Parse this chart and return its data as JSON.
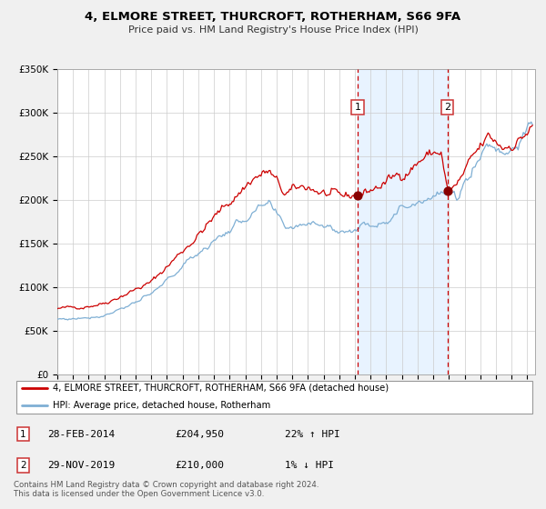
{
  "title": "4, ELMORE STREET, THURCROFT, ROTHERHAM, S66 9FA",
  "subtitle": "Price paid vs. HM Land Registry's House Price Index (HPI)",
  "legend_property": "4, ELMORE STREET, THURCROFT, ROTHERHAM, S66 9FA (detached house)",
  "legend_hpi": "HPI: Average price, detached house, Rotherham",
  "sale1_date": "28-FEB-2014",
  "sale1_price": "£204,950",
  "sale1_hpi": "22% ↑ HPI",
  "sale1_year": 2014.17,
  "sale1_value": 204950,
  "sale2_date": "29-NOV-2019",
  "sale2_price": "£210,000",
  "sale2_hpi": "1% ↓ HPI",
  "sale2_year": 2019.91,
  "sale2_value": 210000,
  "ylim": [
    0,
    350000
  ],
  "yticks": [
    0,
    50000,
    100000,
    150000,
    200000,
    250000,
    300000,
    350000
  ],
  "ytick_labels": [
    "£0",
    "£50K",
    "£100K",
    "£150K",
    "£200K",
    "£250K",
    "£300K",
    "£350K"
  ],
  "color_property": "#cc0000",
  "color_hpi": "#7fafd4",
  "color_vline": "#cc0000",
  "color_shading": "#ddeeff",
  "background_color": "#f0f0f0",
  "plot_background": "#ffffff",
  "footer": "Contains HM Land Registry data © Crown copyright and database right 2024.\nThis data is licensed under the Open Government Licence v3.0."
}
